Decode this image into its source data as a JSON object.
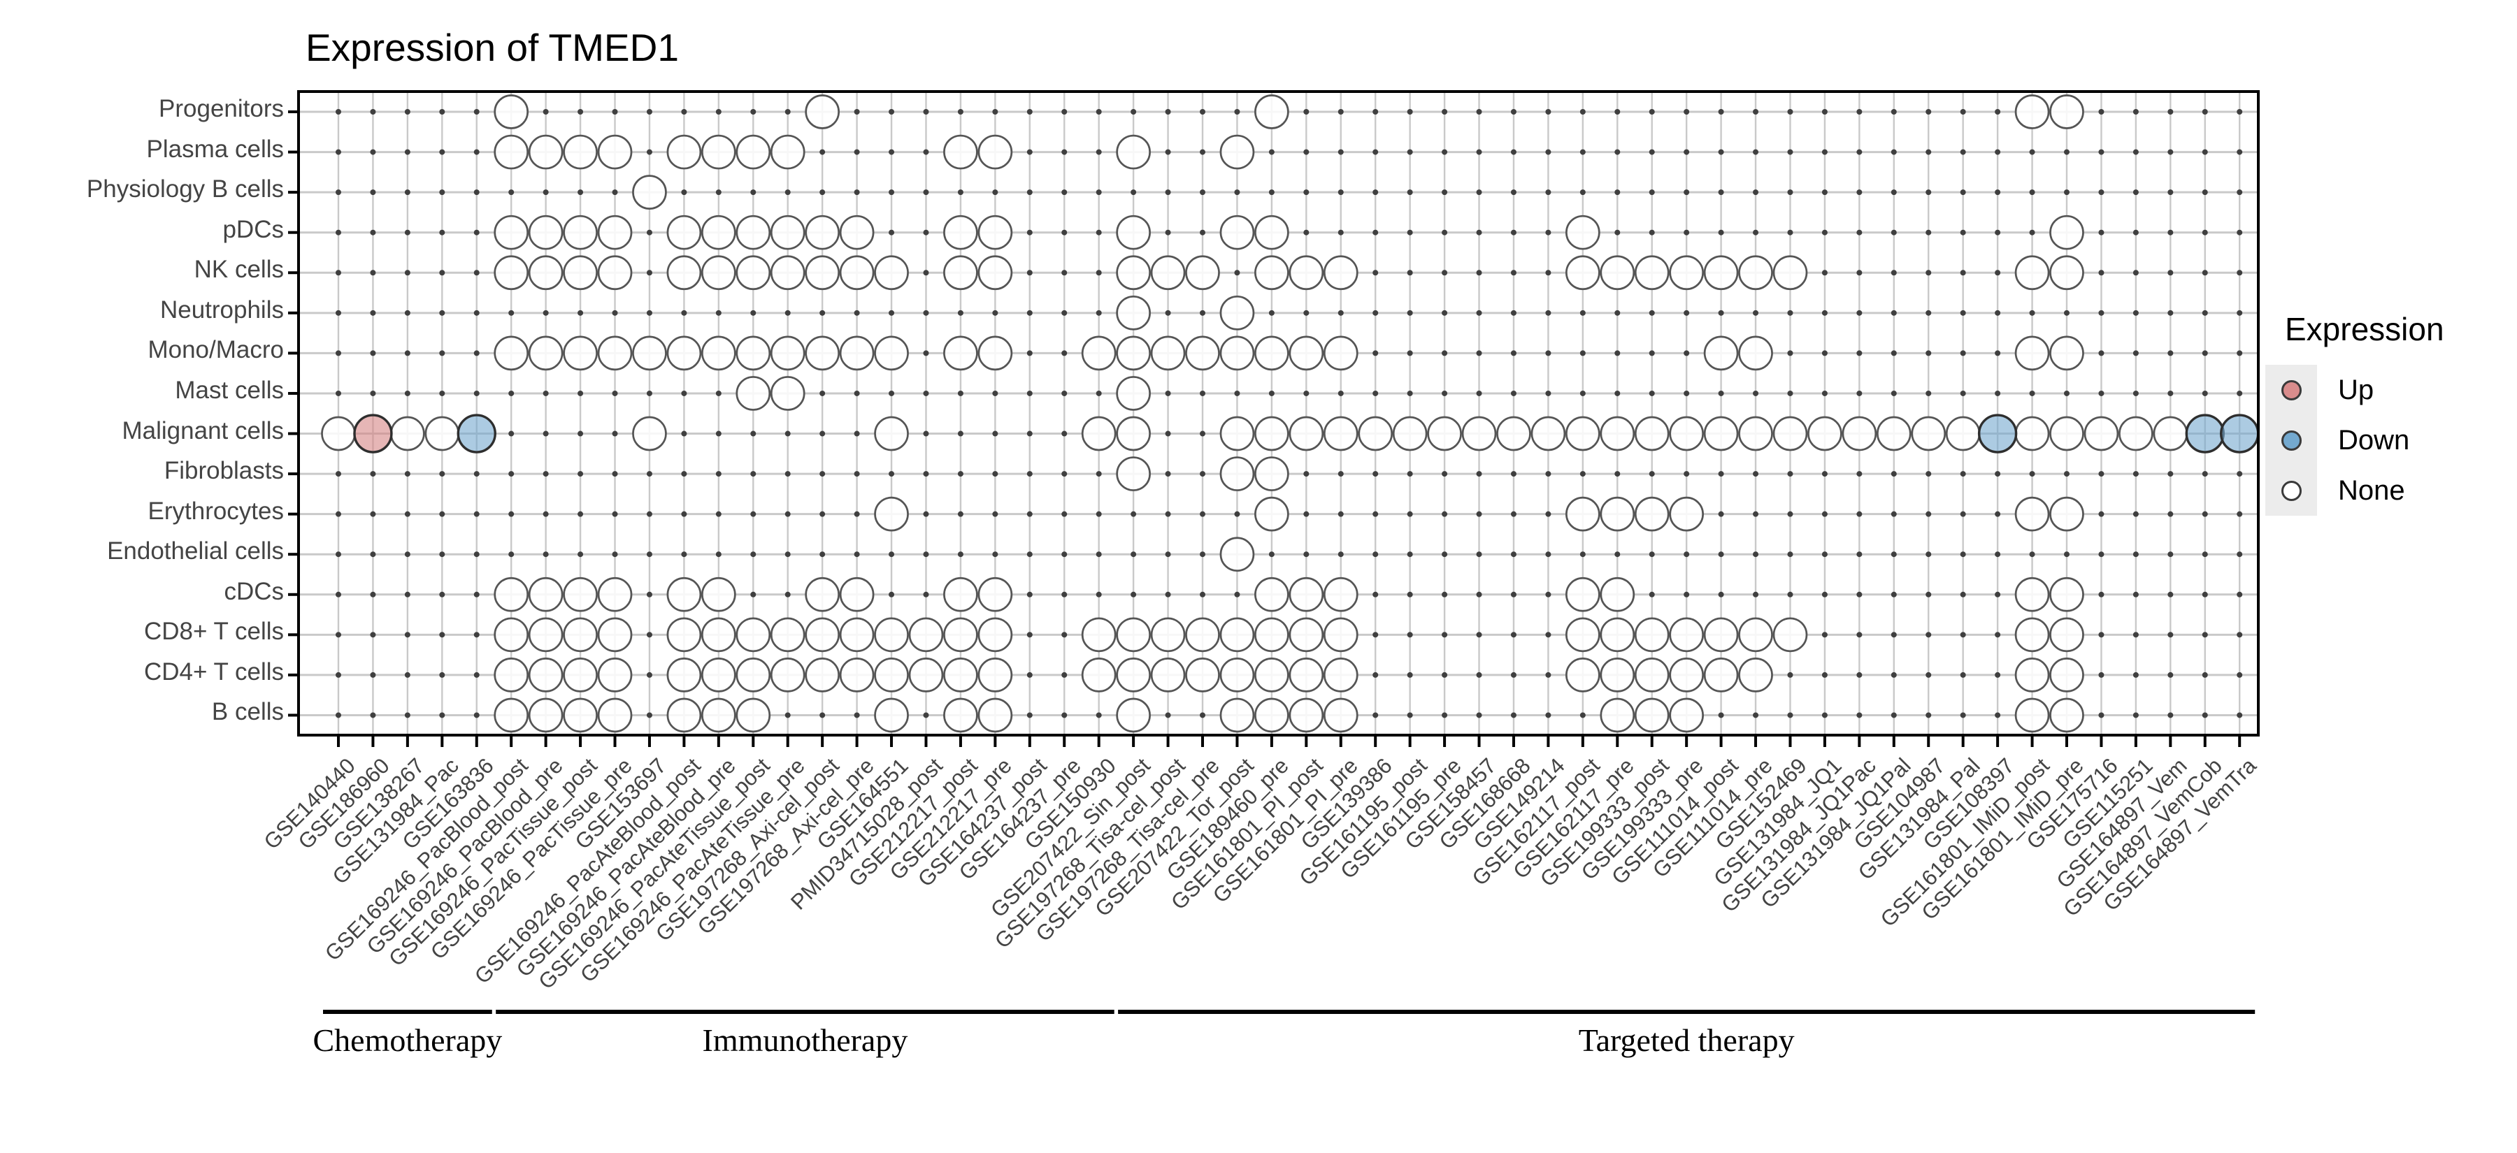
{
  "title": "Expression of TMED1",
  "legend": {
    "title": "Expression",
    "items": [
      {
        "label": "Up",
        "color": "#d98c8c"
      },
      {
        "label": "Down",
        "color": "#74a9cf"
      },
      {
        "label": "None",
        "color": "#ffffff"
      }
    ]
  },
  "colors": {
    "up_fill": "rgba(214,133,133,0.60)",
    "down_fill": "rgba(116,169,207,0.60)",
    "none_fill": "rgba(255,255,255,0.85)",
    "circle_stroke": "#555555",
    "sig_stroke": "#2e2e2e",
    "grid": "#c9c9c9",
    "dot": "#3f3f3f",
    "border": "#000000"
  },
  "chart_data": {
    "type": "dot-matrix",
    "title": "Expression of TMED1",
    "legend_classes": [
      "Up",
      "Down",
      "None"
    ],
    "y_categories": [
      "Progenitors",
      "Plasma cells",
      "Physiology B cells",
      "pDCs",
      "NK cells",
      "Neutrophils",
      "Mono/Macro",
      "Mast cells",
      "Malignant cells",
      "Fibroblasts",
      "Erythrocytes",
      "Endothelial cells",
      "cDCs",
      "CD8+ T cells",
      "CD4+ T cells",
      "B cells"
    ],
    "x_categories": [
      "GSE140440",
      "GSE186960",
      "GSE138267",
      "GSE131984_Pac",
      "GSE163836",
      "GSE169246_PacBlood_post",
      "GSE169246_PacBlood_pre",
      "GSE169246_PacTissue_post",
      "GSE169246_PacTissue_pre",
      "GSE153697",
      "GSE169246_PacAteBlood_post",
      "GSE169246_PacAteBlood_pre",
      "GSE169246_PacAteTissue_post",
      "GSE169246_PacAteTissue_pre",
      "GSE197268_Axi-cel_post",
      "GSE197268_Axi-cel_pre",
      "GSE164551",
      "PMID34715028_post",
      "GSE212217_post",
      "GSE212217_pre",
      "GSE164237_post",
      "GSE164237_pre",
      "GSE150930",
      "GSE207422_Sin_post",
      "GSE197268_Tisa-cel_post",
      "GSE197268_Tisa-cel_pre",
      "GSE207422_Tor_post",
      "GSE189460_pre",
      "GSE161801_PI_post",
      "GSE161801_PI_pre",
      "GSE139386",
      "GSE161195_post",
      "GSE161195_pre",
      "GSE158457",
      "GSE168668",
      "GSE149214",
      "GSE162117_post",
      "GSE162117_pre",
      "GSE199333_post",
      "GSE199333_pre",
      "GSE111014_post",
      "GSE111014_pre",
      "GSE152469",
      "GSE131984_JQ1",
      "GSE131984_JQ1Pac",
      "GSE131984_JQ1Pal",
      "GSE104987",
      "GSE131984_Pal",
      "GSE108397",
      "GSE161801_IMiD_post",
      "GSE161801_IMiD_pre",
      "GSE175716",
      "GSE115251",
      "GSE164897_Vem",
      "GSE164897_VemCob",
      "GSE164897_VemTra"
    ],
    "groups": [
      {
        "label": "Chemotherapy",
        "start": 1,
        "end": 5
      },
      {
        "label": "Immunotherapy",
        "start": 6,
        "end": 23
      },
      {
        "label": "Targeted therapy",
        "start": 24,
        "end": 56
      }
    ],
    "points_by_row": {
      "Progenitors": {
        "None": [
          6,
          15,
          28,
          50,
          51
        ]
      },
      "Plasma cells": {
        "None": [
          6,
          7,
          8,
          9,
          11,
          12,
          13,
          14,
          19,
          20,
          24,
          27
        ]
      },
      "Physiology B cells": {
        "None": [
          10
        ]
      },
      "pDCs": {
        "None": [
          6,
          7,
          8,
          9,
          11,
          12,
          13,
          14,
          15,
          16,
          19,
          20,
          24,
          27,
          28,
          37,
          51
        ]
      },
      "NK cells": {
        "None": [
          6,
          7,
          8,
          9,
          11,
          12,
          13,
          14,
          15,
          16,
          17,
          19,
          20,
          24,
          25,
          26,
          28,
          29,
          30,
          37,
          38,
          39,
          40,
          41,
          42,
          43,
          50,
          51
        ]
      },
      "Neutrophils": {
        "None": [
          24,
          27
        ]
      },
      "Mono/Macro": {
        "None": [
          6,
          7,
          8,
          9,
          10,
          11,
          12,
          13,
          14,
          15,
          16,
          17,
          19,
          20,
          23,
          24,
          25,
          26,
          27,
          28,
          29,
          30,
          41,
          42,
          50,
          51
        ]
      },
      "Mast cells": {
        "None": [
          13,
          14,
          24
        ]
      },
      "Malignant cells": {
        "None": [
          1,
          3,
          4,
          10,
          17,
          23,
          24,
          27,
          28,
          29,
          30,
          31,
          32,
          33,
          34,
          35,
          36,
          37,
          38,
          39,
          40,
          41,
          42,
          43,
          44,
          45,
          46,
          47,
          48,
          50,
          51,
          52,
          53,
          54
        ],
        "Up": [
          2
        ],
        "Down": [
          5,
          49,
          55,
          56
        ]
      },
      "Fibroblasts": {
        "None": [
          24,
          27,
          28
        ]
      },
      "Erythrocytes": {
        "None": [
          17,
          28,
          37,
          38,
          39,
          40,
          50,
          51
        ]
      },
      "Endothelial cells": {
        "None": [
          27
        ]
      },
      "cDCs": {
        "None": [
          6,
          7,
          8,
          9,
          11,
          12,
          15,
          16,
          19,
          20,
          28,
          29,
          30,
          37,
          38,
          50,
          51
        ]
      },
      "CD8+ T cells": {
        "None": [
          6,
          7,
          8,
          9,
          11,
          12,
          13,
          14,
          15,
          16,
          17,
          18,
          19,
          20,
          23,
          24,
          25,
          26,
          27,
          28,
          29,
          30,
          37,
          38,
          39,
          40,
          41,
          42,
          43,
          50,
          51
        ]
      },
      "CD4+ T cells": {
        "None": [
          6,
          7,
          8,
          9,
          11,
          12,
          13,
          14,
          15,
          16,
          17,
          18,
          19,
          20,
          23,
          24,
          25,
          26,
          27,
          28,
          29,
          30,
          37,
          38,
          39,
          40,
          41,
          42,
          50,
          51
        ]
      },
      "B cells": {
        "None": [
          6,
          7,
          8,
          9,
          11,
          12,
          13,
          17,
          19,
          20,
          24,
          27,
          28,
          29,
          30,
          38,
          39,
          40,
          50,
          51
        ]
      }
    }
  }
}
